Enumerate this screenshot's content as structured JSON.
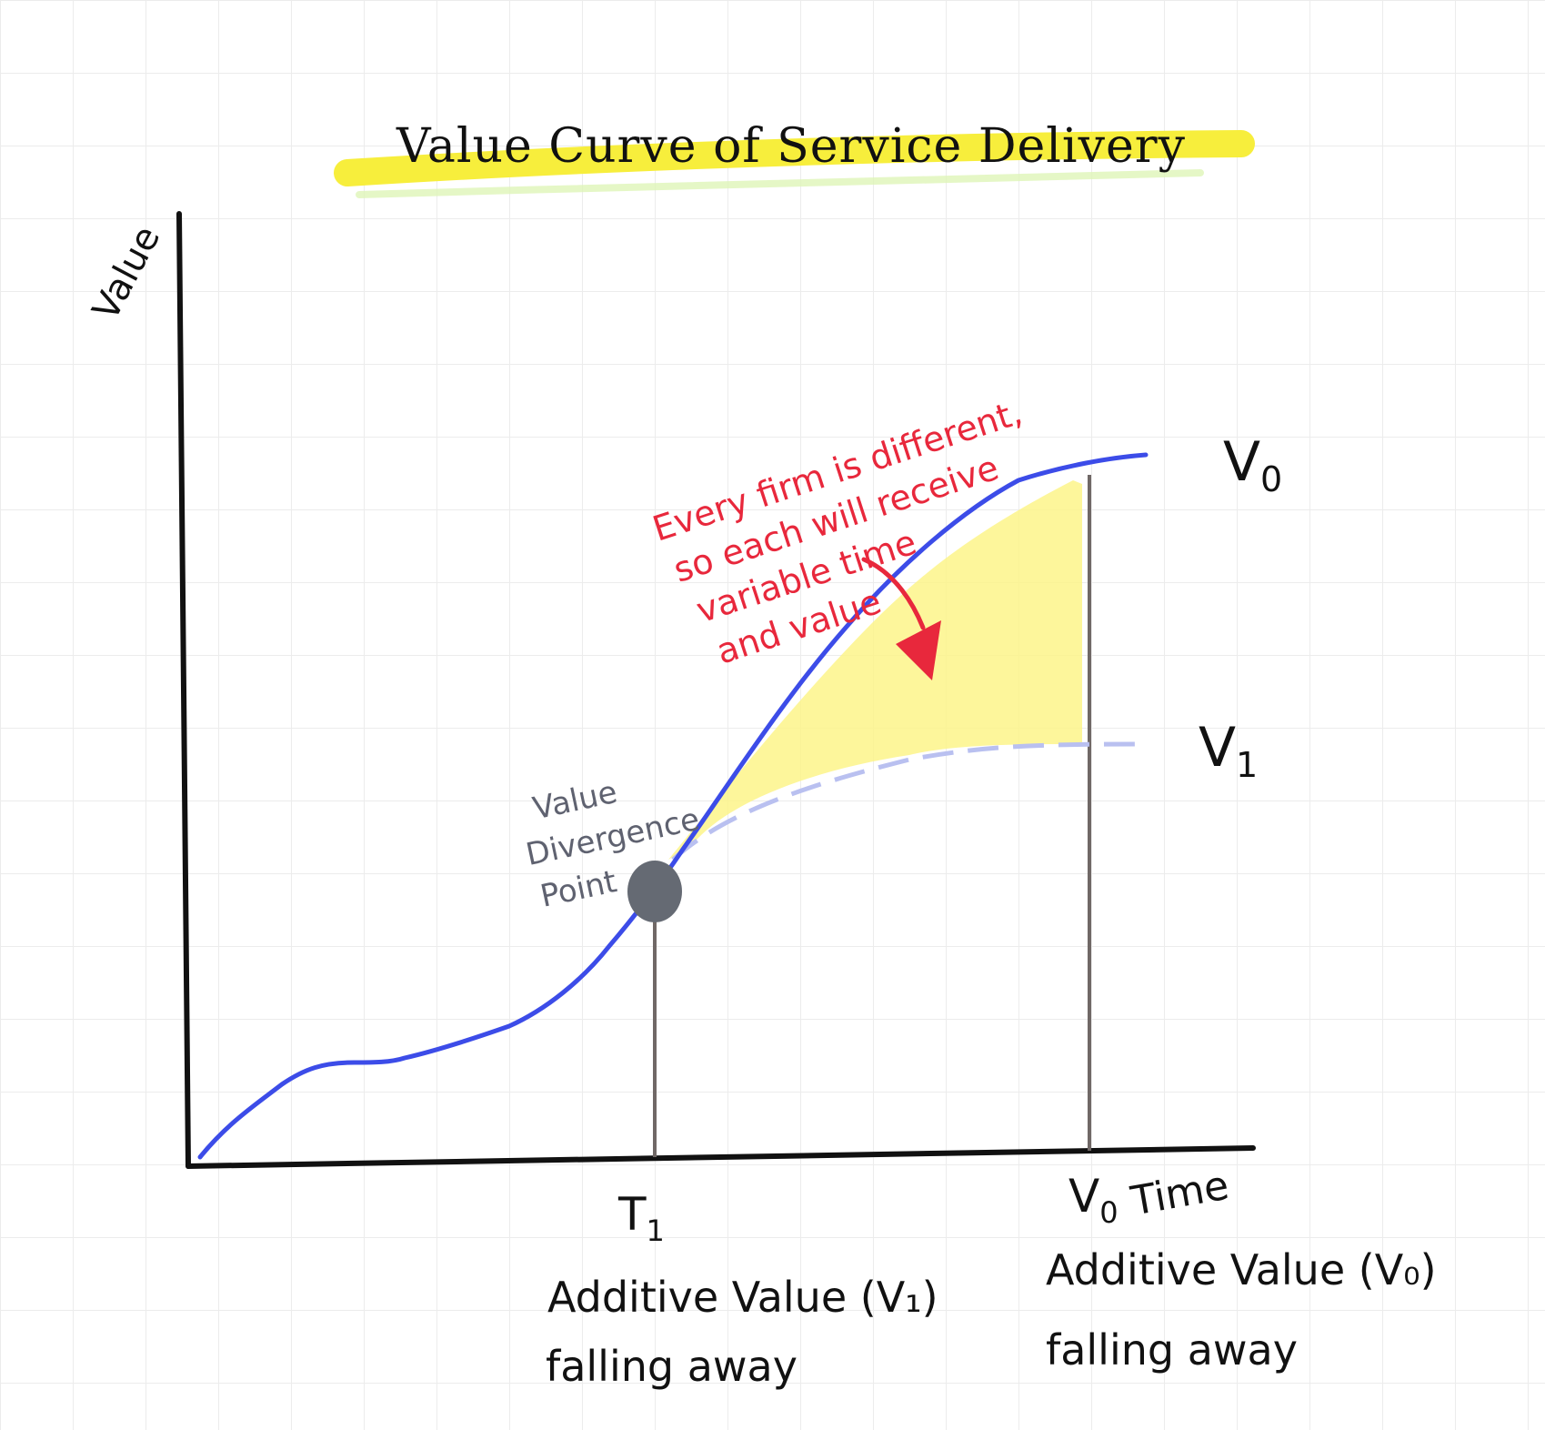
{
  "title": "Value Curve of Service Delivery",
  "y_axis_label": "Value",
  "x_axis_label": "Time",
  "curves": {
    "upper_label": "V",
    "upper_sub": "0",
    "lower_label": "V",
    "lower_sub": "1"
  },
  "divergence_point": [
    "Value",
    "Divergence",
    "Point"
  ],
  "annotation": [
    "Every firm is different,",
    "so each will receive",
    "variable time",
    "and value"
  ],
  "markers": {
    "t1": {
      "label": "T",
      "sub": "1",
      "caption": [
        "Additive Value (V₁)",
        "falling away"
      ]
    },
    "v0": {
      "label": "V",
      "sub": "0",
      "caption": [
        "Additive Value (V₀)",
        "falling away"
      ]
    }
  },
  "colors": {
    "upper_curve": "#3c4ce8",
    "lower_curve": "#b9c0f0",
    "shading": "#fdf58a",
    "highlight": "#f7ee3c",
    "annotation": "#e8283c",
    "point": "#656a73"
  }
}
